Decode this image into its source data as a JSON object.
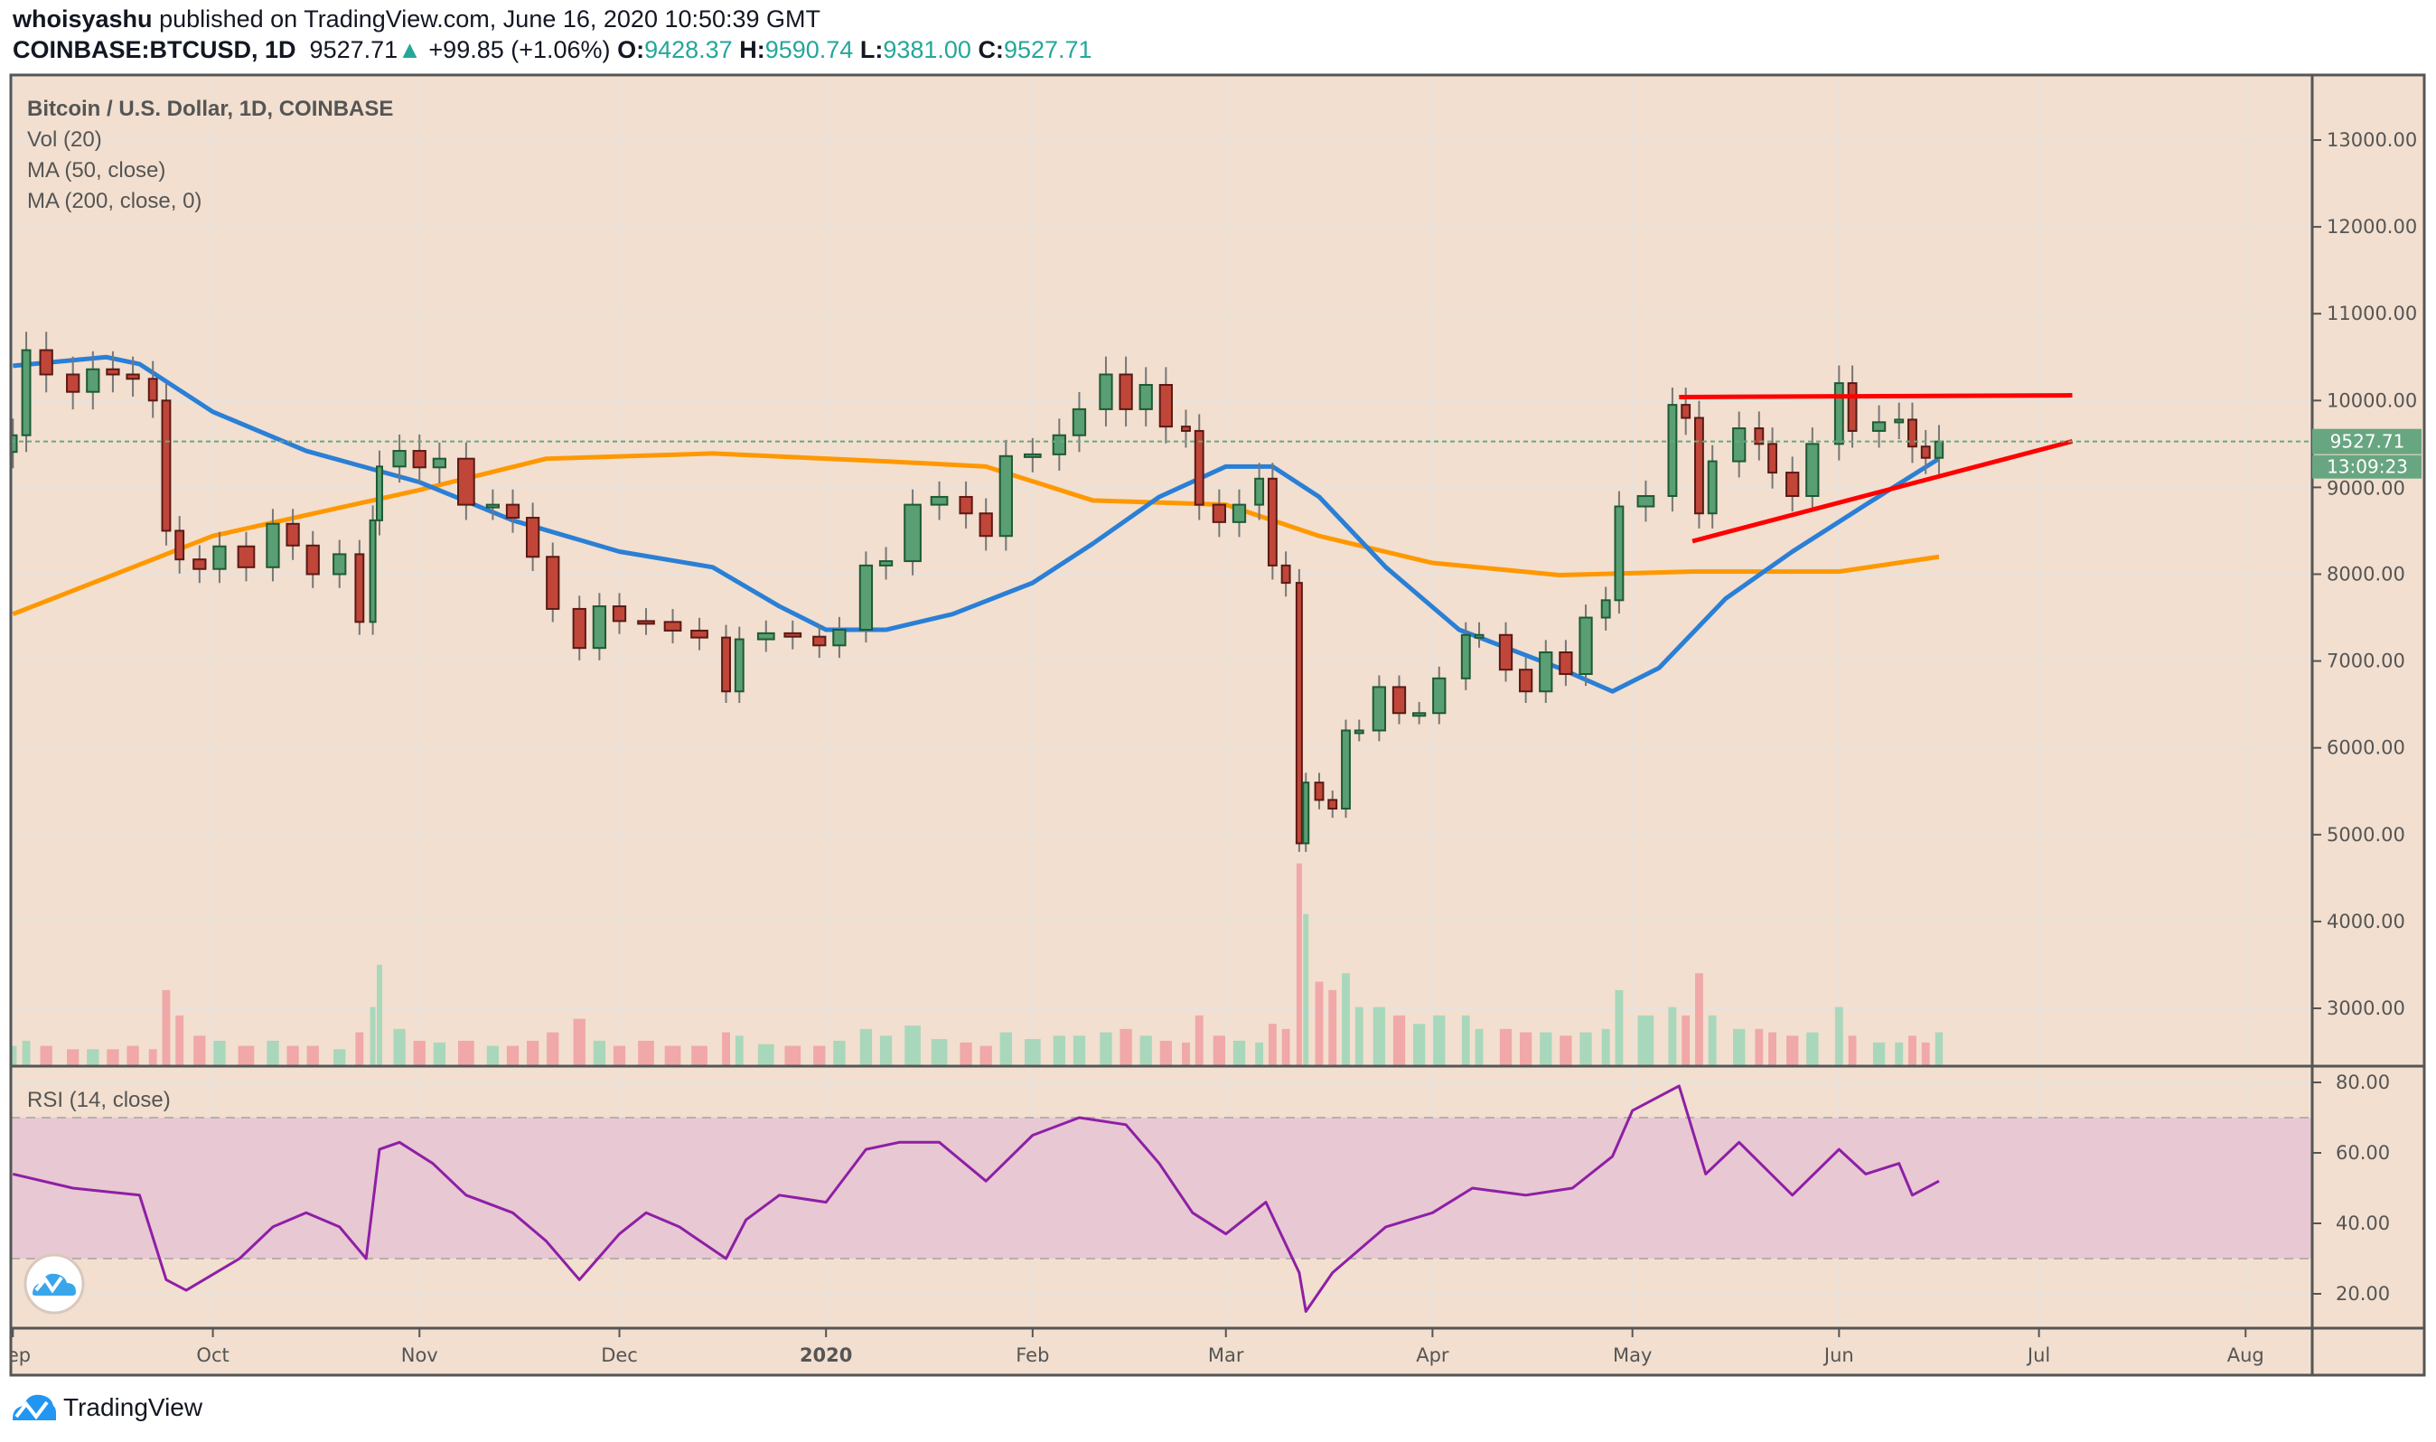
{
  "header": {
    "author": "whoisyashu",
    "published": "published on TradingView.com, June 16, 2020 10:50:39 GMT",
    "symbol": "COINBASE:BTCUSD, 1D",
    "last": "9527.71",
    "change": "+99.85 (+1.06%)",
    "o_label": "O:",
    "o": "9428.37",
    "h_label": "H:",
    "h": "9590.74",
    "l_label": "L:",
    "l": "9381.00",
    "c_label": "C:",
    "c": "9527.71"
  },
  "legend": {
    "title": "Bitcoin / U.S. Dollar, 1D, COINBASE",
    "vol": "Vol (20)",
    "ma50": "MA (50, close)",
    "ma200": "MA (200, close, 0)",
    "rsi": "RSI (14, close)"
  },
  "price_tag": "9527.71",
  "countdown": "13:09:23",
  "footer": {
    "brand": "TradingView"
  },
  "colors": {
    "background": "#f2dfcf",
    "up": "#5a9e73",
    "down": "#c0463a",
    "ma50": "#2a7fd6",
    "ma200": "#ff9800",
    "trendline": "#ff0000",
    "rsi": "#8e1fa6",
    "rsi_band": "#e8c8d2",
    "price_tag": "#68a681"
  },
  "chart_data": [
    {
      "type": "candlestick",
      "title": "Bitcoin / U.S. Dollar, 1D, COINBASE",
      "ylim": [
        2500,
        13800
      ],
      "y_ticks": [
        "3000.00",
        "4000.00",
        "5000.00",
        "6000.00",
        "7000.00",
        "8000.00",
        "9000.00",
        "10000.00",
        "11000.00",
        "12000.00",
        "13000.00"
      ],
      "x_ticks": [
        [
          "2019-09-01",
          "Sep"
        ],
        [
          "2019-10-01",
          "Oct"
        ],
        [
          "2019-11-01",
          "Nov"
        ],
        [
          "2019-12-01",
          "Dec"
        ],
        [
          "2020-01-01",
          "2020"
        ],
        [
          "2020-02-01",
          "Feb"
        ],
        [
          "2020-03-01",
          "Mar"
        ],
        [
          "2020-04-01",
          "Apr"
        ],
        [
          "2020-05-01",
          "May"
        ],
        [
          "2020-06-01",
          "Jun"
        ],
        [
          "2020-07-01",
          "Jul"
        ],
        [
          "2020-08-01",
          "Aug"
        ]
      ],
      "x_range": [
        "2019-09-01",
        "2020-08-20"
      ],
      "candles_date_close_volumepct": [
        [
          "2019-09-01",
          9600,
          12
        ],
        [
          "2019-09-03",
          10580,
          15
        ],
        [
          "2019-09-06",
          10300,
          12
        ],
        [
          "2019-09-10",
          10100,
          10
        ],
        [
          "2019-09-13",
          10360,
          10
        ],
        [
          "2019-09-16",
          10300,
          10
        ],
        [
          "2019-09-19",
          10250,
          12
        ],
        [
          "2019-09-22",
          10000,
          10
        ],
        [
          "2019-09-24",
          8500,
          45
        ],
        [
          "2019-09-26",
          8170,
          30
        ],
        [
          "2019-09-29",
          8060,
          18
        ],
        [
          "2019-10-02",
          8320,
          15
        ],
        [
          "2019-10-06",
          8080,
          12
        ],
        [
          "2019-10-10",
          8580,
          15
        ],
        [
          "2019-10-13",
          8330,
          12
        ],
        [
          "2019-10-16",
          8000,
          12
        ],
        [
          "2019-10-20",
          8230,
          10
        ],
        [
          "2019-10-23",
          7450,
          20
        ],
        [
          "2019-10-25",
          8620,
          35
        ],
        [
          "2019-10-26",
          9240,
          60
        ],
        [
          "2019-10-29",
          9420,
          22
        ],
        [
          "2019-11-01",
          9230,
          15
        ],
        [
          "2019-11-04",
          9330,
          14
        ],
        [
          "2019-11-08",
          8800,
          15
        ],
        [
          "2019-11-12",
          8800,
          12
        ],
        [
          "2019-11-15",
          8650,
          12
        ],
        [
          "2019-11-18",
          8200,
          15
        ],
        [
          "2019-11-21",
          7600,
          20
        ],
        [
          "2019-11-25",
          7150,
          28
        ],
        [
          "2019-11-28",
          7630,
          15
        ],
        [
          "2019-12-01",
          7460,
          12
        ],
        [
          "2019-12-05",
          7450,
          15
        ],
        [
          "2019-12-09",
          7350,
          12
        ],
        [
          "2019-12-13",
          7270,
          12
        ],
        [
          "2019-12-17",
          6650,
          20
        ],
        [
          "2019-12-19",
          7250,
          18
        ],
        [
          "2019-12-23",
          7320,
          13
        ],
        [
          "2019-12-27",
          7280,
          12
        ],
        [
          "2019-12-31",
          7180,
          12
        ],
        [
          "2020-01-03",
          7360,
          15
        ],
        [
          "2020-01-07",
          8100,
          22
        ],
        [
          "2020-01-10",
          8150,
          18
        ],
        [
          "2020-01-14",
          8800,
          24
        ],
        [
          "2020-01-18",
          8890,
          16
        ],
        [
          "2020-01-22",
          8700,
          14
        ],
        [
          "2020-01-25",
          8440,
          12
        ],
        [
          "2020-01-28",
          9360,
          20
        ],
        [
          "2020-02-01",
          9380,
          16
        ],
        [
          "2020-02-05",
          9600,
          18
        ],
        [
          "2020-02-08",
          9900,
          18
        ],
        [
          "2020-02-12",
          10300,
          20
        ],
        [
          "2020-02-15",
          9900,
          22
        ],
        [
          "2020-02-18",
          10180,
          18
        ],
        [
          "2020-02-21",
          9700,
          15
        ],
        [
          "2020-02-24",
          9650,
          14
        ],
        [
          "2020-02-26",
          8800,
          30
        ],
        [
          "2020-02-29",
          8600,
          18
        ],
        [
          "2020-03-03",
          8800,
          15
        ],
        [
          "2020-03-06",
          9100,
          14
        ],
        [
          "2020-03-08",
          8100,
          25
        ],
        [
          "2020-03-10",
          7900,
          22
        ],
        [
          "2020-03-12",
          4900,
          120
        ],
        [
          "2020-03-13",
          5600,
          90
        ],
        [
          "2020-03-15",
          5400,
          50
        ],
        [
          "2020-03-17",
          5300,
          45
        ],
        [
          "2020-03-19",
          6200,
          55
        ],
        [
          "2020-03-21",
          6200,
          35
        ],
        [
          "2020-03-24",
          6700,
          35
        ],
        [
          "2020-03-27",
          6400,
          30
        ],
        [
          "2020-03-30",
          6400,
          25
        ],
        [
          "2020-04-02",
          6800,
          30
        ],
        [
          "2020-04-06",
          7300,
          30
        ],
        [
          "2020-04-08",
          7300,
          22
        ],
        [
          "2020-04-12",
          6900,
          22
        ],
        [
          "2020-04-15",
          6650,
          20
        ],
        [
          "2020-04-18",
          7100,
          20
        ],
        [
          "2020-04-21",
          6850,
          18
        ],
        [
          "2020-04-24",
          7500,
          20
        ],
        [
          "2020-04-27",
          7700,
          22
        ],
        [
          "2020-04-29",
          8780,
          45
        ],
        [
          "2020-05-03",
          8900,
          30
        ],
        [
          "2020-05-07",
          9950,
          35
        ],
        [
          "2020-05-09",
          9800,
          30
        ],
        [
          "2020-05-11",
          8700,
          55
        ],
        [
          "2020-05-13",
          9300,
          30
        ],
        [
          "2020-05-17",
          9680,
          22
        ],
        [
          "2020-05-20",
          9500,
          22
        ],
        [
          "2020-05-22",
          9170,
          20
        ],
        [
          "2020-05-25",
          8900,
          18
        ],
        [
          "2020-05-28",
          9500,
          20
        ],
        [
          "2020-06-01",
          10200,
          35
        ],
        [
          "2020-06-03",
          9650,
          18
        ],
        [
          "2020-06-07",
          9750,
          14
        ],
        [
          "2020-06-10",
          9780,
          14
        ],
        [
          "2020-06-12",
          9470,
          18
        ],
        [
          "2020-06-14",
          9340,
          14
        ],
        [
          "2020-06-16",
          9527.71,
          20
        ]
      ],
      "ma50": [
        [
          "2019-09-01",
          10400
        ],
        [
          "2019-09-15",
          10500
        ],
        [
          "2019-09-20",
          10420
        ],
        [
          "2019-10-01",
          9870
        ],
        [
          "2019-10-15",
          9420
        ],
        [
          "2019-11-01",
          9060
        ],
        [
          "2019-11-15",
          8620
        ],
        [
          "2019-12-01",
          8260
        ],
        [
          "2019-12-15",
          8080
        ],
        [
          "2019-12-25",
          7630
        ],
        [
          "2020-01-01",
          7360
        ],
        [
          "2020-01-10",
          7360
        ],
        [
          "2020-01-20",
          7540
        ],
        [
          "2020-02-01",
          7900
        ],
        [
          "2020-02-10",
          8350
        ],
        [
          "2020-02-20",
          8890
        ],
        [
          "2020-03-01",
          9240
        ],
        [
          "2020-03-08",
          9240
        ],
        [
          "2020-03-15",
          8890
        ],
        [
          "2020-03-25",
          8080
        ],
        [
          "2020-04-05",
          7360
        ],
        [
          "2020-04-20",
          6920
        ],
        [
          "2020-04-28",
          6650
        ],
        [
          "2020-05-05",
          6920
        ],
        [
          "2020-05-15",
          7720
        ],
        [
          "2020-05-25",
          8260
        ],
        [
          "2020-06-05",
          8800
        ],
        [
          "2020-06-16",
          9330
        ]
      ],
      "ma200": [
        [
          "2019-09-01",
          7540
        ],
        [
          "2019-10-01",
          8440
        ],
        [
          "2019-11-01",
          8970
        ],
        [
          "2019-11-20",
          9330
        ],
        [
          "2019-12-15",
          9390
        ],
        [
          "2020-01-10",
          9300
        ],
        [
          "2020-01-25",
          9240
        ],
        [
          "2020-02-10",
          8850
        ],
        [
          "2020-03-01",
          8800
        ],
        [
          "2020-03-15",
          8440
        ],
        [
          "2020-04-01",
          8130
        ],
        [
          "2020-04-20",
          7990
        ],
        [
          "2020-05-10",
          8030
        ],
        [
          "2020-06-01",
          8030
        ],
        [
          "2020-06-16",
          8200
        ]
      ],
      "trendlines": [
        {
          "kind": "resistance",
          "from": [
            "2020-05-08",
            10040
          ],
          "to": [
            "2020-07-06",
            10060
          ]
        },
        {
          "kind": "support",
          "from": [
            "2020-05-10",
            8380
          ],
          "to": [
            "2020-07-06",
            9530
          ]
        }
      ],
      "last_price": 9527.71
    },
    {
      "type": "line",
      "title": "RSI (14, close)",
      "ylim": [
        12,
        84
      ],
      "y_ticks": [
        "20.00",
        "40.00",
        "60.00",
        "80.00"
      ],
      "bands": [
        30,
        70
      ],
      "values": [
        [
          "2019-09-01",
          54
        ],
        [
          "2019-09-10",
          50
        ],
        [
          "2019-09-20",
          48
        ],
        [
          "2019-09-24",
          24
        ],
        [
          "2019-09-27",
          21
        ],
        [
          "2019-10-05",
          30
        ],
        [
          "2019-10-10",
          39
        ],
        [
          "2019-10-15",
          43
        ],
        [
          "2019-10-20",
          39
        ],
        [
          "2019-10-24",
          30
        ],
        [
          "2019-10-26",
          61
        ],
        [
          "2019-10-29",
          63
        ],
        [
          "2019-11-03",
          57
        ],
        [
          "2019-11-08",
          48
        ],
        [
          "2019-11-15",
          43
        ],
        [
          "2019-11-20",
          35
        ],
        [
          "2019-11-25",
          24
        ],
        [
          "2019-12-01",
          37
        ],
        [
          "2019-12-05",
          43
        ],
        [
          "2019-12-10",
          39
        ],
        [
          "2019-12-17",
          30
        ],
        [
          "2019-12-20",
          41
        ],
        [
          "2019-12-25",
          48
        ],
        [
          "2020-01-01",
          46
        ],
        [
          "2020-01-07",
          61
        ],
        [
          "2020-01-12",
          63
        ],
        [
          "2020-01-18",
          63
        ],
        [
          "2020-01-25",
          52
        ],
        [
          "2020-02-01",
          65
        ],
        [
          "2020-02-08",
          70
        ],
        [
          "2020-02-15",
          68
        ],
        [
          "2020-02-20",
          57
        ],
        [
          "2020-02-25",
          43
        ],
        [
          "2020-03-01",
          37
        ],
        [
          "2020-03-07",
          46
        ],
        [
          "2020-03-12",
          26
        ],
        [
          "2020-03-13",
          15
        ],
        [
          "2020-03-17",
          26
        ],
        [
          "2020-03-25",
          39
        ],
        [
          "2020-04-01",
          43
        ],
        [
          "2020-04-07",
          50
        ],
        [
          "2020-04-15",
          48
        ],
        [
          "2020-04-22",
          50
        ],
        [
          "2020-04-28",
          59
        ],
        [
          "2020-05-01",
          72
        ],
        [
          "2020-05-08",
          79
        ],
        [
          "2020-05-12",
          54
        ],
        [
          "2020-05-17",
          63
        ],
        [
          "2020-05-25",
          48
        ],
        [
          "2020-06-01",
          61
        ],
        [
          "2020-06-05",
          54
        ],
        [
          "2020-06-10",
          57
        ],
        [
          "2020-06-12",
          48
        ],
        [
          "2020-06-16",
          52
        ]
      ]
    }
  ]
}
